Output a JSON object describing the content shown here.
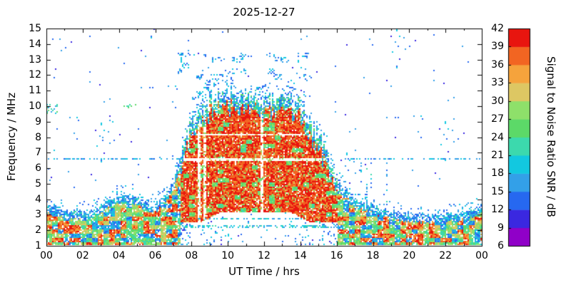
{
  "chart_data": {
    "type": "heatmap",
    "title": "2025-12-27",
    "xlabel": "UT Time / hrs",
    "ylabel": "Frequency / MHz",
    "xlim": [
      0,
      24
    ],
    "ylim": [
      1,
      15
    ],
    "grid": false,
    "background": "#ffffff",
    "x_tick_values": [
      0,
      2,
      4,
      6,
      8,
      10,
      12,
      14,
      16,
      18,
      20,
      22,
      24
    ],
    "x_tick_labels": [
      "00",
      "02",
      "04",
      "06",
      "08",
      "10",
      "12",
      "14",
      "16",
      "18",
      "20",
      "22",
      "00"
    ],
    "y_tick_values": [
      1,
      2,
      3,
      4,
      5,
      6,
      7,
      8,
      9,
      10,
      11,
      12,
      13,
      14,
      15
    ],
    "y_tick_labels": [
      "1",
      "2",
      "3",
      "4",
      "5",
      "6",
      "7",
      "8",
      "9",
      "10",
      "11",
      "12",
      "13",
      "14",
      "15"
    ],
    "colorbar": {
      "label": "Signal to Noise Ratio SNR / dB",
      "min": 6,
      "max": 42,
      "ticks": [
        6,
        9,
        12,
        15,
        18,
        21,
        24,
        27,
        30,
        33,
        36,
        39,
        42
      ],
      "colors": [
        "#9000c8",
        "#3a28e0",
        "#2668f0",
        "#33a0e8",
        "#12c8e0",
        "#3cd9ad",
        "#5cd968",
        "#8ee06a",
        "#ddc763",
        "#f5a33c",
        "#f26522",
        "#e8150f"
      ]
    },
    "envelope_max_freq_mhz": [
      3.6,
      3.3,
      3.2,
      3.6,
      4.3,
      4.1,
      3.6,
      5.0,
      9.0,
      10.3,
      10.8,
      10.6,
      10.3,
      10.5,
      10.0,
      8.0,
      5.2,
      4.0,
      3.6,
      3.2,
      3.0,
      3.0,
      3.0,
      3.2,
      3.6
    ],
    "daytime_blob_hours": [
      7.2,
      16.2
    ],
    "scatter_cloud_freq_range_mhz": [
      10.4,
      13.4
    ],
    "interference_lines_mhz": [
      2.25,
      2.72,
      6.62
    ],
    "gap_lines_mhz": [
      6.55,
      8.15
    ],
    "low_band_range_mhz": [
      1.0,
      3.6
    ]
  }
}
